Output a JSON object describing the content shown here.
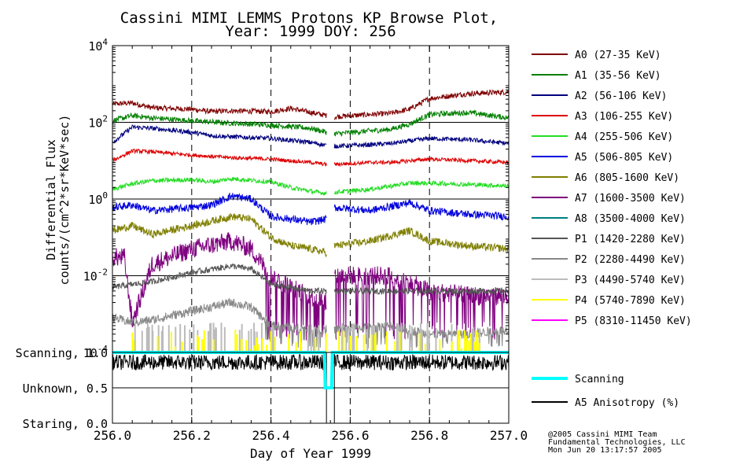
{
  "chart_data": {
    "type": "line",
    "title_line1": "Cassini MIMI LEMMS Protons KP Browse Plot,",
    "title_line2": "Year: 1999 DOY: 256",
    "ylabel_line1": "Differential Flux",
    "ylabel_line2": "counts/(cm^2*sr*KeV*sec)",
    "xlabel": "Day of Year 1999",
    "xlim": [
      256.0,
      257.0
    ],
    "x_ticks": [
      "256.0",
      "256.2",
      "256.4",
      "256.6",
      "256.8",
      "257.0"
    ],
    "y_scale": "log",
    "ylim": [
      0.0001,
      10000
    ],
    "y_ticks": [
      {
        "base": "10",
        "exp": "4"
      },
      {
        "base": "10",
        "exp": "2"
      },
      {
        "base": "10",
        "exp": "0"
      },
      {
        "base": "10",
        "exp": "-2"
      },
      {
        "base": "10",
        "exp": "-4"
      }
    ],
    "data_gap": [
      256.54,
      256.56
    ],
    "series": [
      {
        "name": "A0 (27-35 KeV)",
        "color": "#7f0000",
        "points": [
          [
            256.0,
            300
          ],
          [
            256.05,
            320
          ],
          [
            256.1,
            240
          ],
          [
            256.2,
            220
          ],
          [
            256.25,
            190
          ],
          [
            256.3,
            200
          ],
          [
            256.4,
            190
          ],
          [
            256.45,
            230
          ],
          [
            256.54,
            150
          ],
          [
            256.56,
            140
          ],
          [
            256.65,
            160
          ],
          [
            256.7,
            170
          ],
          [
            256.75,
            220
          ],
          [
            256.8,
            420
          ],
          [
            256.9,
            560
          ],
          [
            257.0,
            620
          ]
        ]
      },
      {
        "name": "A1 (35-56 KeV)",
        "color": "#007f00",
        "points": [
          [
            256.0,
            110
          ],
          [
            256.05,
            150
          ],
          [
            256.1,
            130
          ],
          [
            256.2,
            110
          ],
          [
            256.3,
            95
          ],
          [
            256.4,
            85
          ],
          [
            256.5,
            70
          ],
          [
            256.54,
            55
          ],
          [
            256.56,
            50
          ],
          [
            256.65,
            60
          ],
          [
            256.7,
            65
          ],
          [
            256.75,
            90
          ],
          [
            256.8,
            160
          ],
          [
            256.9,
            180
          ],
          [
            257.0,
            130
          ]
        ]
      },
      {
        "name": "A2 (56-106 KeV)",
        "color": "#00007f",
        "points": [
          [
            256.0,
            30
          ],
          [
            256.05,
            75
          ],
          [
            256.1,
            70
          ],
          [
            256.2,
            55
          ],
          [
            256.25,
            45
          ],
          [
            256.3,
            42
          ],
          [
            256.4,
            38
          ],
          [
            256.5,
            30
          ],
          [
            256.54,
            25
          ],
          [
            256.56,
            24
          ],
          [
            256.65,
            26
          ],
          [
            256.7,
            28
          ],
          [
            256.8,
            38
          ],
          [
            256.9,
            35
          ],
          [
            257.0,
            28
          ]
        ]
      },
      {
        "name": "A3 (106-255 KeV)",
        "color": "#dd0000",
        "points": [
          [
            256.0,
            10
          ],
          [
            256.05,
            18
          ],
          [
            256.1,
            17
          ],
          [
            256.2,
            14
          ],
          [
            256.3,
            12
          ],
          [
            256.4,
            11
          ],
          [
            256.5,
            9
          ],
          [
            256.54,
            8
          ],
          [
            256.56,
            8
          ],
          [
            256.65,
            9
          ],
          [
            256.7,
            9
          ],
          [
            256.8,
            11
          ],
          [
            256.9,
            10
          ],
          [
            257.0,
            9
          ]
        ]
      },
      {
        "name": "A4 (255-506 KeV)",
        "color": "#22dd22",
        "points": [
          [
            256.0,
            1.8
          ],
          [
            256.05,
            2.5
          ],
          [
            256.1,
            3.0
          ],
          [
            256.2,
            3.2
          ],
          [
            256.25,
            2.8
          ],
          [
            256.3,
            3.4
          ],
          [
            256.4,
            2.8
          ],
          [
            256.45,
            2.0
          ],
          [
            256.5,
            1.6
          ],
          [
            256.54,
            1.4
          ],
          [
            256.56,
            1.5
          ],
          [
            256.65,
            1.8
          ],
          [
            256.75,
            2.6
          ],
          [
            256.8,
            2.6
          ],
          [
            256.9,
            2.4
          ],
          [
            257.0,
            2.2
          ]
        ]
      },
      {
        "name": "A5 (506-805 KeV)",
        "color": "#0000dd",
        "points": [
          [
            256.0,
            0.6
          ],
          [
            256.05,
            0.7
          ],
          [
            256.1,
            0.5
          ],
          [
            256.2,
            0.6
          ],
          [
            256.25,
            0.7
          ],
          [
            256.3,
            1.2
          ],
          [
            256.35,
            1.0
          ],
          [
            256.4,
            0.35
          ],
          [
            256.45,
            0.3
          ],
          [
            256.5,
            0.25
          ],
          [
            256.54,
            0.3
          ],
          [
            256.56,
            0.6
          ],
          [
            256.65,
            0.5
          ],
          [
            256.75,
            0.8
          ],
          [
            256.8,
            0.5
          ],
          [
            256.9,
            0.4
          ],
          [
            257.0,
            0.35
          ]
        ]
      },
      {
        "name": "A6 (805-1600 KeV)",
        "color": "#7f7f00",
        "points": [
          [
            256.0,
            0.15
          ],
          [
            256.05,
            0.2
          ],
          [
            256.1,
            0.12
          ],
          [
            256.2,
            0.2
          ],
          [
            256.3,
            0.35
          ],
          [
            256.35,
            0.3
          ],
          [
            256.4,
            0.1
          ],
          [
            256.45,
            0.06
          ],
          [
            256.5,
            0.05
          ],
          [
            256.54,
            0.04
          ],
          [
            256.56,
            0.06
          ],
          [
            256.65,
            0.08
          ],
          [
            256.75,
            0.15
          ],
          [
            256.8,
            0.08
          ],
          [
            256.9,
            0.06
          ],
          [
            257.0,
            0.05
          ]
        ]
      },
      {
        "name": "A7 (1600-3500 KeV)",
        "color": "#7f007f",
        "points": [
          [
            256.0,
            0.03
          ],
          [
            256.03,
            0.03
          ],
          [
            256.05,
            0.0006
          ],
          [
            256.1,
            0.02
          ],
          [
            256.2,
            0.05
          ],
          [
            256.3,
            0.08
          ],
          [
            256.35,
            0.05
          ],
          [
            256.4,
            0.01
          ],
          [
            256.45,
            0.005
          ],
          [
            256.5,
            0.003
          ],
          [
            256.54,
            0.002
          ],
          [
            256.56,
            0.01
          ],
          [
            256.7,
            0.01
          ],
          [
            256.8,
            0.004
          ],
          [
            256.9,
            0.003
          ],
          [
            257.0,
            0.003
          ]
        ]
      },
      {
        "name": "A8 (3500-4000 KeV)",
        "color": "#007f7f",
        "points": []
      },
      {
        "name": "P1 (1420-2280 KeV)",
        "color": "#555555",
        "points": [
          [
            256.0,
            0.005
          ],
          [
            256.1,
            0.007
          ],
          [
            256.2,
            0.012
          ],
          [
            256.3,
            0.018
          ],
          [
            256.35,
            0.015
          ],
          [
            256.4,
            0.006
          ],
          [
            256.5,
            0.004
          ],
          [
            256.54,
            0.004
          ],
          [
            256.56,
            0.004
          ],
          [
            256.7,
            0.004
          ],
          [
            256.8,
            0.004
          ],
          [
            256.9,
            0.004
          ],
          [
            257.0,
            0.004
          ]
        ]
      },
      {
        "name": "P2 (2280-4490 KeV)",
        "color": "#888888",
        "points": [
          [
            256.0,
            0.0008
          ],
          [
            256.05,
            0.0006
          ],
          [
            256.1,
            0.0007
          ],
          [
            256.2,
            0.0012
          ],
          [
            256.3,
            0.002
          ],
          [
            256.35,
            0.0015
          ],
          [
            256.4,
            0.0005
          ],
          [
            256.5,
            0.0004
          ],
          [
            256.54,
            0.0004
          ],
          [
            256.56,
            0.0004
          ],
          [
            256.7,
            0.0005
          ],
          [
            256.8,
            0.0003
          ],
          [
            256.9,
            0.0003
          ],
          [
            257.0,
            0.0004
          ]
        ]
      },
      {
        "name": "P3 (4490-5740 KeV)",
        "color": "#bbbbbb",
        "points": []
      },
      {
        "name": "P4 (5740-7890 KeV)",
        "color": "#ffff00",
        "points": []
      },
      {
        "name": "P5 (8310-11450 KeV)",
        "color": "#ff00ff",
        "points": []
      }
    ],
    "lower_panel": {
      "ylabels": [
        "Scanning, 1.0",
        "Unknown, 0.5",
        "Staring, 0.0"
      ],
      "series": [
        {
          "name": "Scanning",
          "color": "#00ffff",
          "points": [
            [
              256.0,
              1.0
            ],
            [
              256.535,
              1.0
            ],
            [
              256.537,
              0.5
            ],
            [
              256.553,
              0.5
            ],
            [
              256.555,
              1.0
            ],
            [
              257.0,
              1.0
            ]
          ]
        },
        {
          "name": "A5 Anisotropy (%)",
          "color": "#000000",
          "points": [
            [
              256.0,
              0.85
            ],
            [
              257.0,
              0.85
            ]
          ]
        }
      ]
    },
    "credit": [
      "@2005 Cassini MIMI Team",
      "Fundamental Technologies, LLC",
      "Mon Jun 20 13:17:57 2005"
    ]
  }
}
